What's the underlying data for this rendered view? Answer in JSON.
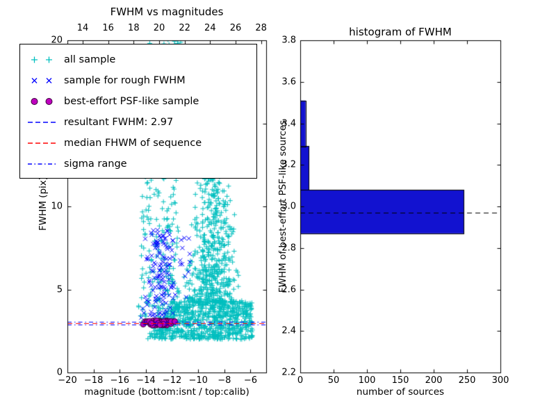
{
  "figure": {
    "background": "#ffffff"
  },
  "chart_data": [
    {
      "type": "scatter",
      "title": "FWHM vs magnitudes",
      "xlabel": "magnitude (bottom:isnt / top:calib)",
      "ylabel": "FWHM (pix)",
      "xlim": [
        -20,
        -4.8
      ],
      "ylim": [
        0,
        20
      ],
      "xticks_bottom": [
        -20,
        -18,
        -16,
        -14,
        -12,
        -10,
        -8,
        -6
      ],
      "top_axis": {
        "lim": [
          12.8,
          28.4
        ],
        "ticks": [
          14,
          16,
          18,
          20,
          22,
          24,
          26,
          28
        ]
      },
      "yticks": [
        0,
        5,
        10,
        15,
        20
      ],
      "grid": false,
      "legend_position": "upper-left",
      "series": [
        {
          "name": "all sample",
          "marker": "plus",
          "color": "#00bfbf",
          "clusters": [
            {
              "count": 800,
              "yr": [
                2.0,
                4.3
              ],
              "xAt0": [
                -14.0,
                -5.8
              ],
              "xAt1": [
                -12.0,
                -5.9
              ],
              "ybias": 1.1,
              "xmode": "uniform"
            },
            {
              "count": 520,
              "yr": [
                4.2,
                12.0
              ],
              "xAt0": [
                -11.6,
                -6.4
              ],
              "xAt1": [
                -10.2,
                -7.5
              ],
              "ybias": 1.7,
              "xmode": "center"
            },
            {
              "count": 200,
              "yr": [
                3.0,
                12.3
              ],
              "xAt0": [
                -14.6,
                -11.4
              ],
              "xAt1": [
                -14.2,
                -11.6
              ],
              "ybias": 1.2,
              "xmode": "uniform"
            },
            {
              "count": 26,
              "yr": [
                18.8,
                20.3
              ],
              "xAt0": [
                -14.3,
                -10.8
              ],
              "xAt1": [
                -14.0,
                -10.9
              ],
              "ybias": 1.0,
              "xmode": "uniform"
            }
          ]
        },
        {
          "name": "sample for rough FWHM",
          "marker": "cross",
          "color": "#0000ff",
          "clusters": [
            {
              "count": 130,
              "yr": [
                3.1,
                8.6
              ],
              "xAt0": [
                -14.5,
                -11.4
              ],
              "xAt1": [
                -14.2,
                -11.8
              ],
              "ybias": 1.0,
              "xmode": "center"
            },
            {
              "count": 12,
              "yr": [
                4.4,
                8.4
              ],
              "xAt0": [
                -11.5,
                -10.4
              ],
              "xAt1": [
                -11.4,
                -10.6
              ],
              "ybias": 1.0,
              "xmode": "uniform"
            }
          ]
        },
        {
          "name": "best-effort PSF-like sample",
          "marker": "circle",
          "color": "#bf00bf",
          "edge": "#3a003a",
          "clusters": [
            {
              "count": 72,
              "yr": [
                2.84,
                3.12
              ],
              "xAt0": [
                -14.4,
                -11.6
              ],
              "xAt1": [
                -14.4,
                -11.6
              ],
              "ybias": 1.0,
              "xmode": "center"
            }
          ]
        }
      ],
      "lines": [
        {
          "name": "resultant FWHM: 2.97",
          "y": 2.97,
          "style": "dashed",
          "color": "#0000ff"
        },
        {
          "name": "median FHWM of sequence",
          "y": 2.99,
          "style": "dashed",
          "color": "#ff0000"
        },
        {
          "name": "sigma range upper",
          "y": 3.06,
          "style": "dashdot",
          "color": "#0000ff"
        },
        {
          "name": "sigma range lower",
          "y": 2.88,
          "style": "dashdot",
          "color": "#0000ff"
        }
      ],
      "legend": [
        {
          "label": "all sample",
          "marker": "plus",
          "color": "#00bfbf"
        },
        {
          "label": "sample for rough FWHM",
          "marker": "cross",
          "color": "#0000ff"
        },
        {
          "label": "best-effort PSF-like sample",
          "marker": "circle",
          "color": "#bf00bf"
        },
        {
          "label": "resultant FWHM: 2.97",
          "marker": "dashed",
          "color": "#0000ff"
        },
        {
          "label": "median FHWM of sequence",
          "marker": "dashed",
          "color": "#ff0000"
        },
        {
          "label": "sigma range",
          "marker": "dashdot",
          "color": "#0000ff"
        }
      ]
    },
    {
      "type": "bar",
      "orientation": "horizontal",
      "title": "histogram of FWHM",
      "xlabel": "number of sources",
      "ylabel": "FWHM of best-effort PSF-like sources",
      "xlim": [
        0,
        300
      ],
      "ylim": [
        2.2,
        3.8
      ],
      "xticks": [
        0,
        50,
        100,
        150,
        200,
        250,
        300
      ],
      "yticks": [
        "2.2",
        "2.4",
        "2.6",
        "2.8",
        "3.0",
        "3.2",
        "3.4",
        "3.6",
        "3.8"
      ],
      "bar_color": "#1212d0",
      "bar_edge": "#000000",
      "bins": [
        {
          "y0": 2.87,
          "y1": 3.08,
          "count": 245
        },
        {
          "y0": 3.08,
          "y1": 3.29,
          "count": 13
        },
        {
          "y0": 3.29,
          "y1": 3.51,
          "count": 8
        }
      ],
      "dashed_line_y": 2.97,
      "dashed_line_color": "#000000"
    }
  ]
}
